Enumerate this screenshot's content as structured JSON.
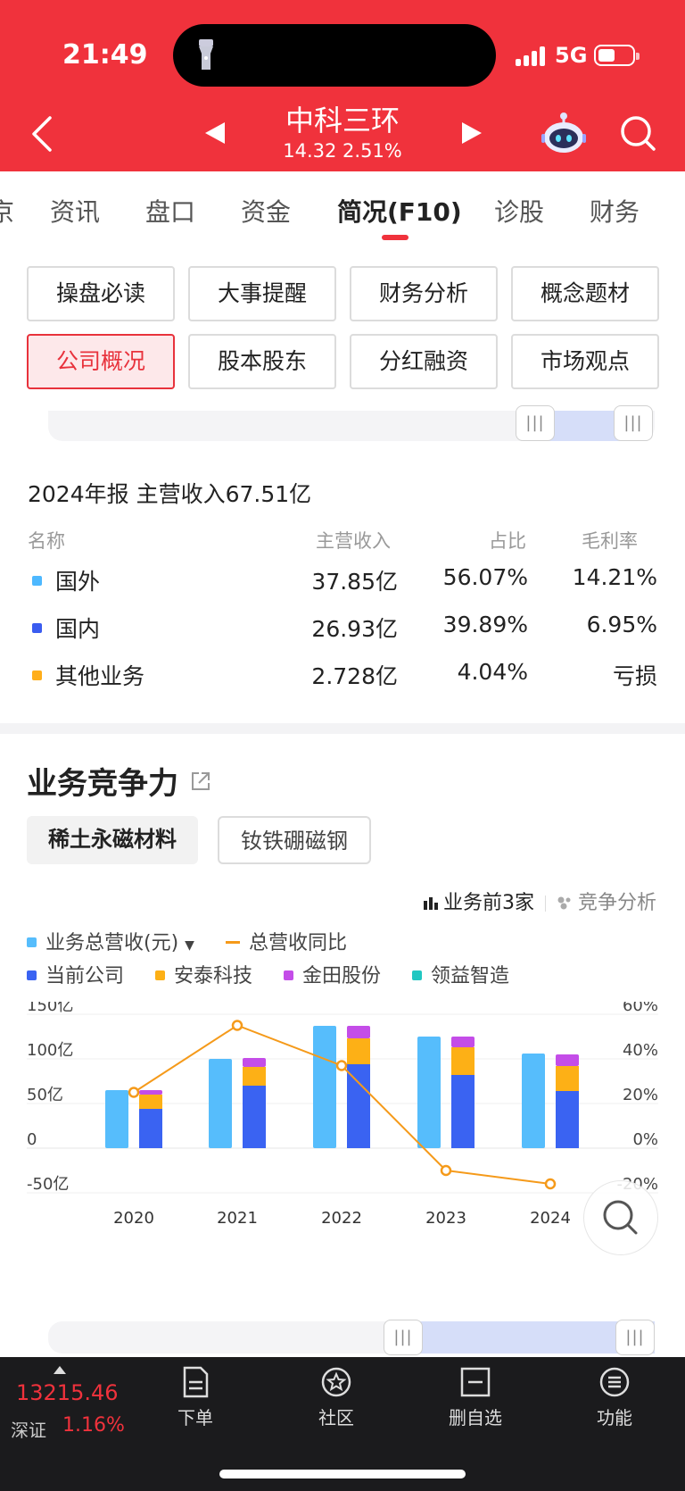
{
  "status": {
    "time": "21:49",
    "network": "5G"
  },
  "header": {
    "stock_name": "中科三环",
    "price": "14.32",
    "change_pct": "2.51%"
  },
  "tabs": [
    {
      "label": "京"
    },
    {
      "label": "资讯"
    },
    {
      "label": "盘口"
    },
    {
      "label": "资金"
    },
    {
      "label": "简况(F10)"
    },
    {
      "label": "诊股"
    },
    {
      "label": "财务"
    }
  ],
  "f10_buttons": [
    {
      "label": "操盘必读"
    },
    {
      "label": "大事提醒"
    },
    {
      "label": "财务分析"
    },
    {
      "label": "概念题材"
    },
    {
      "label": "公司概况"
    },
    {
      "label": "股本股东"
    },
    {
      "label": "分红融资"
    },
    {
      "label": "市场观点"
    }
  ],
  "revenue": {
    "title": "2024年报 主营收入67.51亿",
    "headers": {
      "name": "名称",
      "revenue": "主营收入",
      "share": "占比",
      "margin": "毛利率"
    },
    "rows": [
      {
        "name": "国外",
        "revenue": "37.85亿",
        "share": "56.07%",
        "margin": "14.21%",
        "color": "#4db8ff"
      },
      {
        "name": "国内",
        "revenue": "26.93亿",
        "share": "39.89%",
        "margin": "6.95%",
        "color": "#3a5cf0"
      },
      {
        "name": "其他业务",
        "revenue": "2.728亿",
        "share": "4.04%",
        "margin": "亏损",
        "color": "#ffae1a"
      }
    ]
  },
  "competitiveness": {
    "title": "业务竞争力",
    "chips": [
      "稀土永磁材料",
      "钕铁硼磁钢"
    ],
    "view_top3": "业务前3家",
    "view_analysis": "竞争分析",
    "legend": {
      "total_revenue": "业务总营收(元)",
      "yoy": "总营收同比",
      "current": "当前公司",
      "antai": "安泰科技",
      "jintian": "金田股份",
      "lingyi": "领益智造"
    }
  },
  "chart_data": {
    "type": "bar",
    "categories": [
      "2020",
      "2021",
      "2022",
      "2023",
      "2024"
    ],
    "y_left": {
      "ticks": [
        "150亿",
        "100亿",
        "50亿",
        "0",
        "-50亿"
      ],
      "range": [
        -50,
        150
      ],
      "unit": "亿"
    },
    "y_right": {
      "ticks": [
        "60%",
        "40%",
        "20%",
        "0%",
        "-20%"
      ],
      "range": [
        -20,
        60
      ]
    },
    "series": [
      {
        "name": "业务总营收(元)",
        "color": "#56bdfc",
        "values": [
          65,
          100,
          137,
          125,
          106
        ]
      },
      {
        "name": "当前公司",
        "color": "#3a63f2",
        "values": [
          44,
          70,
          94,
          82,
          64
        ]
      },
      {
        "name": "安泰科技",
        "color": "#fdb016",
        "values": [
          16,
          21,
          29,
          31,
          28
        ]
      },
      {
        "name": "金田股份",
        "color": "#c44de8",
        "values": [
          5,
          10,
          14,
          12,
          13
        ]
      },
      {
        "name": "领益智造",
        "color": "#21c7c2",
        "values": [
          0,
          0,
          0,
          0,
          0
        ]
      },
      {
        "name": "总营收同比",
        "color": "#f59a1a",
        "type": "line",
        "values": [
          25,
          55,
          37,
          -10,
          -16
        ]
      }
    ],
    "grid": true
  },
  "bottom": {
    "index_value": "13215.46",
    "index_name": "深证",
    "index_pct": "1.16%",
    "nav": [
      {
        "label": "下单"
      },
      {
        "label": "社区"
      },
      {
        "label": "删自选"
      },
      {
        "label": "功能"
      }
    ]
  },
  "colors": {
    "brand": "#f0323c"
  }
}
